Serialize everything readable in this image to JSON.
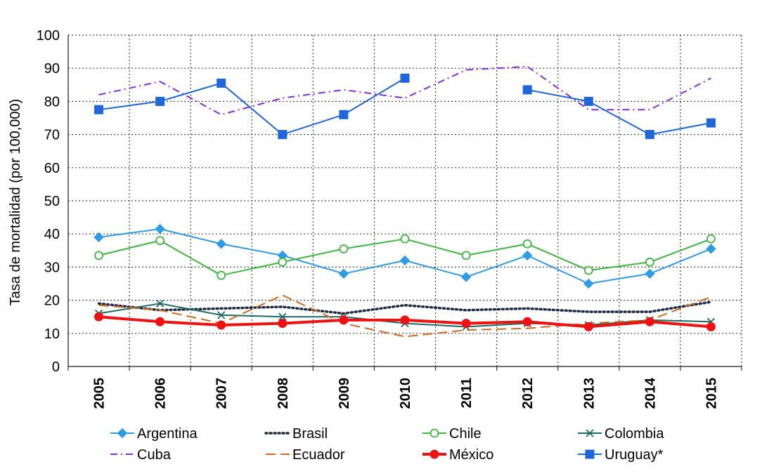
{
  "chart_data": {
    "type": "line",
    "title": "",
    "xlabel": "",
    "ylabel": "Tasa de mortalidad (por 100,000)",
    "ylim": [
      0,
      100
    ],
    "yticks": [
      "0",
      "10",
      "20",
      "30",
      "40",
      "50",
      "60",
      "70",
      "80",
      "90",
      "100"
    ],
    "categories": [
      "2005",
      "2006",
      "2007",
      "2008",
      "2009",
      "2010",
      "2011",
      "2012",
      "2013",
      "2014",
      "2015"
    ],
    "grid": true,
    "legend_position": "bottom",
    "series": [
      {
        "name": "Argentina",
        "color": "#2e9be6",
        "dash": "",
        "marker": "diamond",
        "values": [
          39,
          41.5,
          37,
          33.5,
          28,
          32,
          27,
          33.5,
          25,
          28,
          35.5
        ]
      },
      {
        "name": "Brasil",
        "color": "#1f2a44",
        "dash": "dot",
        "marker": "none",
        "values": [
          19,
          17,
          17.5,
          18,
          16,
          18.5,
          17,
          17.5,
          16.5,
          16.5,
          19.5
        ]
      },
      {
        "name": "Chile",
        "color": "#3cb83c",
        "dash": "",
        "marker": "circle",
        "values": [
          33.5,
          38,
          27.5,
          31.5,
          35.5,
          38.5,
          33.5,
          37,
          29,
          31.5,
          38.5
        ]
      },
      {
        "name": "Colombia",
        "color": "#1c6b60",
        "dash": "",
        "marker": "x",
        "values": [
          16,
          19,
          15.5,
          15,
          15,
          13,
          12,
          13,
          12.5,
          14,
          13.5
        ]
      },
      {
        "name": "Cuba",
        "color": "#8a2be2",
        "dash": "dashdot",
        "marker": "none",
        "values": [
          82,
          86,
          76,
          81,
          83.5,
          81,
          89.5,
          90.5,
          77.5,
          77.5,
          87
        ]
      },
      {
        "name": "Ecuador",
        "color": "#d2691e",
        "dash": "dash",
        "marker": "none",
        "values": [
          18.5,
          17,
          13,
          21.5,
          13,
          9,
          11,
          11.5,
          13,
          14,
          21
        ]
      },
      {
        "name": "México",
        "color": "#ee1111",
        "dash": "",
        "marker": "circle-filled",
        "values": [
          15,
          13.5,
          12.5,
          13,
          14,
          14,
          13,
          13.5,
          12,
          13.5,
          12
        ]
      },
      {
        "name": "Uruguay*",
        "color": "#1e66d9",
        "dash": "",
        "marker": "square",
        "values": [
          77.5,
          80,
          85.5,
          70,
          76,
          87,
          null,
          83.5,
          80,
          70,
          73.5
        ]
      }
    ]
  }
}
